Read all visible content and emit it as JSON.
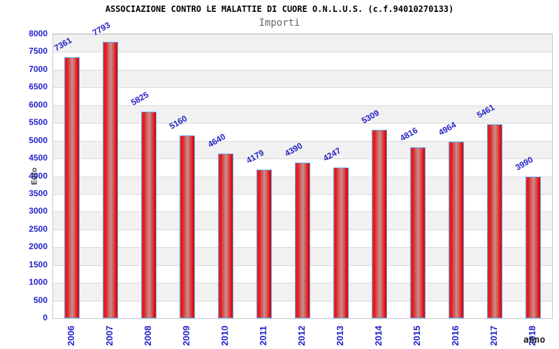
{
  "header": {
    "title": "ASSOCIAZIONE CONTRO LE MALATTIE DI CUORE O.N.L.U.S. (c.f.94010270133)",
    "subtitle": "Importi"
  },
  "chart_data": {
    "type": "bar",
    "title": "ASSOCIAZIONE CONTRO LE MALATTIE DI CUORE O.N.L.U.S. (c.f.94010270133)",
    "subtitle": "Importi",
    "categories": [
      "2006",
      "2007",
      "2008",
      "2009",
      "2010",
      "2011",
      "2012",
      "2013",
      "2014",
      "2015",
      "2016",
      "2017",
      "2018"
    ],
    "values": [
      7361,
      7793,
      5825,
      5160,
      4640,
      4179,
      4390,
      4247,
      5309,
      4816,
      4964,
      5461,
      3990
    ],
    "xlabel": "anno",
    "ylabel": "Euro",
    "ylim": [
      0,
      8000
    ],
    "ytick_step": 500,
    "legend": "none",
    "grid": "horizontal-bands-alternating",
    "colors": {
      "bar_fill_edge": "#e01515",
      "bar_fill_center": "#c89090",
      "bar_border": "#5fa8f5",
      "value_label": "#2323c8",
      "axis_tick_label": "#2222cc",
      "band_shade": "#f1f1f1",
      "gridline": "#d9d9d9",
      "title": "#000000",
      "subtitle": "#666666"
    }
  }
}
